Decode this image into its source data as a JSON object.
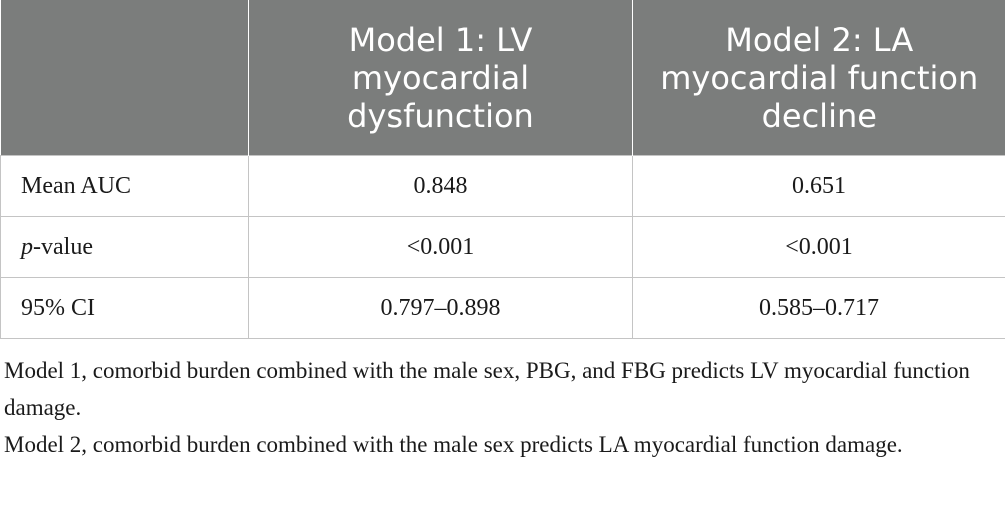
{
  "table": {
    "headers": [
      "",
      "Model 1: LV myocardial dysfunction",
      "Model 2: LA myocardial function decline"
    ],
    "rows": [
      {
        "label": "Mean AUC",
        "model1": "0.848",
        "model2": "0.651"
      },
      {
        "label_italic": "p",
        "label_rest": "-value",
        "model1": "<0.001",
        "model2": "<0.001"
      },
      {
        "label": "95% CI",
        "model1": "0.797–0.898",
        "model2": "0.585–0.717"
      }
    ]
  },
  "notes": [
    "Model 1, comorbid burden combined with the male sex, PBG, and FBG predicts LV myocardial function damage.",
    "Model 2, comorbid burden combined with the male sex predicts LA myocardial function damage."
  ],
  "colors": {
    "header_bg": "#7b7d7c",
    "header_text": "#ffffff",
    "grid": "#c4c4c4"
  }
}
